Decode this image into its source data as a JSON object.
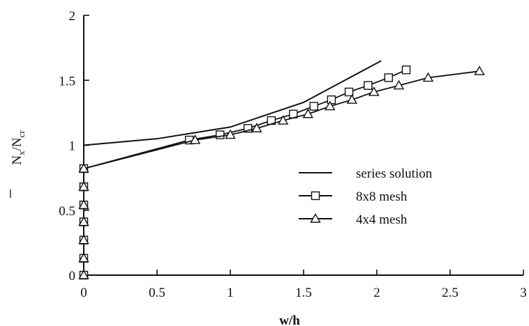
{
  "chart_data": {
    "type": "line",
    "title": "",
    "xlabel": "w/h",
    "ylabel": {
      "main": "N",
      "sub_x": "x",
      "slash": "/N",
      "sub_cr": "cr"
    },
    "xlim": [
      0,
      3
    ],
    "ylim": [
      0,
      2
    ],
    "xticks": [
      {
        "value": 0,
        "label": "0"
      },
      {
        "value": 0.5,
        "label": "0.5"
      },
      {
        "value": 1,
        "label": "1"
      },
      {
        "value": 1.5,
        "label": "1.5"
      },
      {
        "value": 2,
        "label": "2"
      },
      {
        "value": 2.5,
        "label": "2.5"
      },
      {
        "value": 3,
        "label": "3"
      }
    ],
    "yticks": [
      {
        "value": 0,
        "label": "0"
      },
      {
        "value": 0.5,
        "label": "0.5"
      },
      {
        "value": 1,
        "label": "1"
      },
      {
        "value": 1.5,
        "label": "1.5"
      },
      {
        "value": 2,
        "label": "2"
      }
    ],
    "grid": false,
    "legend_position": "center-right",
    "series": [
      {
        "name": "series solution",
        "marker": "none",
        "x": [
          0.0,
          0.5,
          1.0,
          1.5,
          2.03
        ],
        "y": [
          1.0,
          1.05,
          1.14,
          1.33,
          1.65
        ]
      },
      {
        "name": "8x8 mesh",
        "marker": "square",
        "x": [
          0.0,
          0.0,
          0.0,
          0.0,
          0.0,
          0.0,
          0.0,
          0.72,
          0.93,
          1.12,
          1.28,
          1.43,
          1.57,
          1.69,
          1.81,
          1.94,
          2.08,
          2.2
        ],
        "y": [
          0.0,
          0.13,
          0.27,
          0.41,
          0.54,
          0.68,
          0.82,
          1.04,
          1.08,
          1.13,
          1.19,
          1.24,
          1.3,
          1.35,
          1.41,
          1.46,
          1.52,
          1.58
        ]
      },
      {
        "name": "4x4 mesh",
        "marker": "triangle",
        "x": [
          0.0,
          0.0,
          0.0,
          0.0,
          0.0,
          0.0,
          0.0,
          0.76,
          1.0,
          1.18,
          1.36,
          1.53,
          1.68,
          1.83,
          1.98,
          2.15,
          2.35,
          2.7
        ],
        "y": [
          0.0,
          0.13,
          0.27,
          0.41,
          0.54,
          0.68,
          0.82,
          1.04,
          1.08,
          1.13,
          1.19,
          1.24,
          1.3,
          1.35,
          1.41,
          1.46,
          1.52,
          1.57
        ]
      }
    ]
  }
}
